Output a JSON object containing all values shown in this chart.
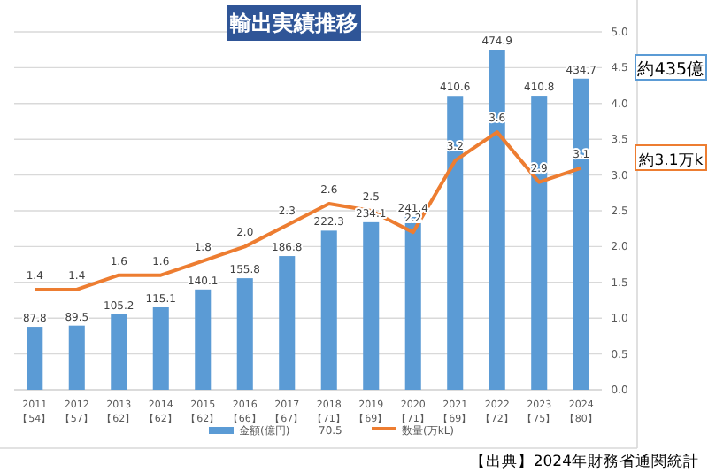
{
  "chart_data": {
    "type": "bar",
    "title": "輸出実績推移",
    "categories": [
      "2011\n【54】",
      "2012\n【57】",
      "2013\n【62】",
      "2014\n【62】",
      "2015\n【62】",
      "2016\n【66】",
      "2017\n【67】",
      "2018\n【71】",
      "2019\n【69】",
      "2020\n【71】",
      "2021\n【69】",
      "2022\n【72】",
      "2023\n【75】",
      "2024\n【80】"
    ],
    "series": [
      {
        "name": "金額(億円)",
        "color": "#5b9bd5",
        "values": [
          87.8,
          89.5,
          105.2,
          115.1,
          140.1,
          155.8,
          186.8,
          222.3,
          234.1,
          241.4,
          410.6,
          474.9,
          410.8,
          434.7
        ],
        "value_labels": [
          "87.8",
          "89.5",
          "105.2",
          "115.1",
          "140.1",
          "155.8",
          "186.8",
          "222.3",
          "234.1",
          "241.4",
          "410.6",
          "474.9",
          "410.8",
          "434.7"
        ]
      },
      {
        "name": "数量(万kL)",
        "type": "line",
        "axis": "y2",
        "color": "#ed7d31",
        "values": [
          1.4,
          1.4,
          1.6,
          1.6,
          1.8,
          2.0,
          2.3,
          2.6,
          2.5,
          2.2,
          3.2,
          3.6,
          2.9,
          3.1
        ],
        "value_labels": [
          "1.4",
          "1.4",
          "1.6",
          "1.6",
          "1.8",
          "2.0",
          "2.3",
          "2.6",
          "2.5",
          "2.2",
          "3.2",
          "3.6",
          "2.9",
          "3.1"
        ]
      }
    ],
    "ylim": [
      0,
      500
    ],
    "yticks": [
      {
        "value": 0,
        "label": null
      },
      {
        "value": 50,
        "label": null
      },
      {
        "value": 100,
        "label": null
      },
      {
        "value": 150,
        "label": null
      },
      {
        "value": 200,
        "label": null
      },
      {
        "value": 250,
        "label": null
      },
      {
        "value": 300,
        "label": null
      },
      {
        "value": 350,
        "label": null
      },
      {
        "value": 400,
        "label": null
      },
      {
        "value": 450,
        "label": null
      },
      {
        "value": 500,
        "label": null
      }
    ],
    "y2lim": [
      0,
      5
    ],
    "y2ticks": [
      {
        "value": 0,
        "label": "0.0"
      },
      {
        "value": 0.5,
        "label": "0.5"
      },
      {
        "value": 1,
        "label": "1.0"
      },
      {
        "value": 1.5,
        "label": "1.5"
      },
      {
        "value": 2,
        "label": "2.0"
      },
      {
        "value": 2.5,
        "label": "2.5"
      },
      {
        "value": 3,
        "label": "3.0"
      },
      {
        "value": 3.5,
        "label": "3.5"
      },
      {
        "value": 4,
        "label": "4.0"
      },
      {
        "value": 4.5,
        "label": "4.5"
      },
      {
        "value": 5,
        "label": "5.0"
      }
    ],
    "grid": "y",
    "legend": "bottom",
    "marker": "none",
    "line_style": "solid",
    "annotations": [
      "70.5",
      "約435億",
      "約3.1万k",
      "【出典】2024年財務省通関統計"
    ]
  }
}
